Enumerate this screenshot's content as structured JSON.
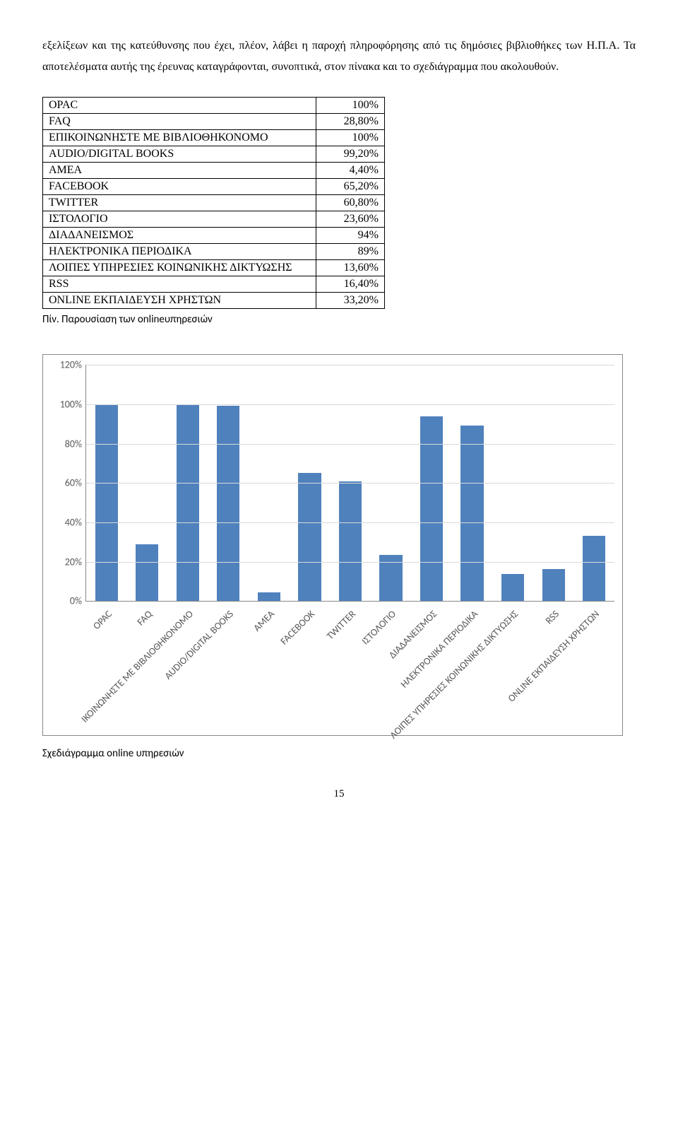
{
  "paragraph": "εξελίξεων και της κατεύθυνσης που έχει, πλέον, λάβει η παροχή πληροφόρησης από τις δημόσιες βιβλιοθήκες των Η.Π.Α. Τα αποτελέσματα αυτής της έρευνας καταγράφονται, συνοπτικά, στον πίνακα και το σχεδιάγραμμα που ακολουθούν.",
  "table": {
    "rows": [
      {
        "label": "OPAC",
        "value": "100%"
      },
      {
        "label": "FAQ",
        "value": "28,80%"
      },
      {
        "label": "ΕΠΙΚΟΙΝΩΝΗΣΤΕ ΜΕ ΒΙΒΛΙΟΘΗΚΟΝΟΜΟ",
        "value": "100%"
      },
      {
        "label": "AUDIO/DIGITAL BOOKS",
        "value": "99,20%"
      },
      {
        "label": "ΑΜΕΑ",
        "value": "4,40%"
      },
      {
        "label": "FACEBOOK",
        "value": "65,20%"
      },
      {
        "label": "TWITTER",
        "value": "60,80%"
      },
      {
        "label": "ΙΣΤΟΛΟΓΙΟ",
        "value": "23,60%"
      },
      {
        "label": "ΔΙΑΔΑΝΕΙΣΜΟΣ",
        "value": "94%"
      },
      {
        "label": "ΗΛΕΚΤΡΟΝΙΚΑ ΠΕΡΙΟΔΙΚΑ",
        "value": "89%"
      },
      {
        "label": "ΛΟΙΠΕΣ ΥΠΗΡΕΣΙΕΣ ΚΟΙΝΩΝΙΚΗΣ ΔΙΚΤΥΩΣΗΣ",
        "value": "13,60%"
      },
      {
        "label": "RSS",
        "value": "16,40%"
      },
      {
        "label": "ONLINE ΕΚΠΑΙΔΕΥΣΗ ΧΡΗΣΤΩΝ",
        "value": "33,20%"
      }
    ],
    "caption": "Πίν. Παρουσίαση των onlineυπηρεσιών"
  },
  "chart": {
    "type": "bar",
    "categories": [
      "OPAC",
      "FAQ",
      "ΙΚΟΙΝΩΝΗΣΤΕ ΜΕ ΒΙΒΛΙΟΘΗΚΟΝΟΜΟ",
      "AUDIO/DIGITAL BOOKS",
      "ΑΜΕΑ",
      "FACEBOOK",
      "TWITTER",
      "ΙΣΤΟΛΟΓΙΟ",
      "ΔΙΑΔΑΝΕΙΣΜΟΣ",
      "ΗΛΕΚΤΡΟΝΙΚΑ ΠΕΡΙΟΔΙΚΑ",
      "ΛΟΙΠΕΣ ΥΠΗΡΕΣΙΕΣ ΚΟΙΝΩΝΙΚΗΣ ΔΙΚΤΥΩΣΗΣ",
      "RSS",
      "ONLINE ΕΚΠΑΙΔΕΥΣΗ ΧΡΗΣΤΩΝ"
    ],
    "values": [
      100,
      28.8,
      100,
      99.2,
      4.4,
      65.2,
      60.8,
      23.6,
      94,
      89,
      13.6,
      16.4,
      33.2
    ],
    "bar_color": "#4f81bd",
    "background_color": "#ffffff",
    "grid_color": "#d9d9d9",
    "axis_color": "#888888",
    "label_color": "#595959",
    "ymax": 120,
    "ytick_step": 20,
    "ytick_labels": [
      "0%",
      "20%",
      "40%",
      "60%",
      "80%",
      "100%",
      "120%"
    ],
    "label_fontsize": 14,
    "caption": "Σχεδιάγραμμα online υπηρεσιών"
  },
  "page_number": "15"
}
